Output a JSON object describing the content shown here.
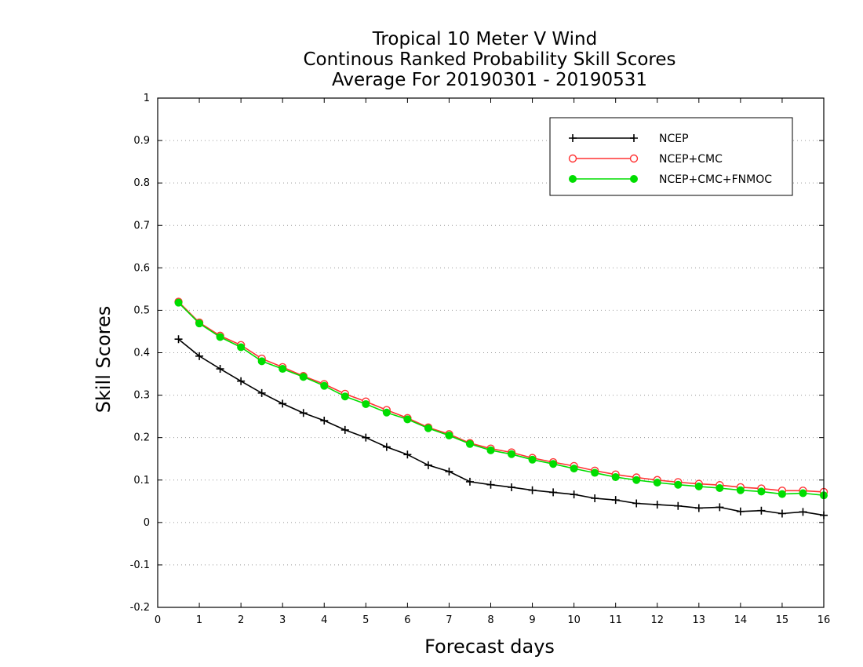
{
  "chart_data": {
    "type": "line",
    "title": [
      "Tropical 10 Meter V Wind",
      "Continous Ranked Probability Skill Scores",
      "Average For 20190301 - 20190531"
    ],
    "xlabel": "Forecast days",
    "ylabel": "Skill Scores",
    "xlim": [
      0,
      16
    ],
    "ylim": [
      -0.2,
      1
    ],
    "xticks": [
      0,
      1,
      2,
      3,
      4,
      5,
      6,
      7,
      8,
      9,
      10,
      11,
      12,
      13,
      14,
      15,
      16
    ],
    "yticks": [
      -0.2,
      -0.1,
      0,
      0.1,
      0.2,
      0.3,
      0.4,
      0.5,
      0.6,
      0.7,
      0.8,
      0.9,
      1
    ],
    "ytick_labels": [
      "-0.2",
      "-0.1",
      "0",
      "0.1",
      "0.2",
      "0.3",
      "0.4",
      "0.5",
      "0.6",
      "0.7",
      "0.8",
      "0.9",
      "1"
    ],
    "grid": "horizontal dotted",
    "legend_position": "top-right",
    "x": [
      0.5,
      1,
      1.5,
      2,
      2.5,
      3,
      3.5,
      4,
      4.5,
      5,
      5.5,
      6,
      6.5,
      7,
      7.5,
      8,
      8.5,
      9,
      9.5,
      10,
      10.5,
      11,
      11.5,
      12,
      12.5,
      13,
      13.5,
      14,
      14.5,
      15,
      15.5,
      16
    ],
    "series": [
      {
        "name": "NCEP",
        "color": "#000000",
        "marker": "plus",
        "values": [
          0.432,
          0.392,
          0.362,
          0.333,
          0.305,
          0.28,
          0.258,
          0.24,
          0.218,
          0.2,
          0.178,
          0.16,
          0.135,
          0.12,
          0.096,
          0.089,
          0.083,
          0.076,
          0.071,
          0.066,
          0.057,
          0.053,
          0.045,
          0.042,
          0.039,
          0.034,
          0.036,
          0.026,
          0.028,
          0.021,
          0.025,
          0.017
        ]
      },
      {
        "name": "NCEP+CMC",
        "color": "#ff3333",
        "marker": "open-circle",
        "values": [
          0.52,
          0.471,
          0.44,
          0.418,
          0.386,
          0.366,
          0.345,
          0.326,
          0.303,
          0.285,
          0.265,
          0.246,
          0.224,
          0.208,
          0.187,
          0.174,
          0.165,
          0.152,
          0.142,
          0.133,
          0.122,
          0.113,
          0.106,
          0.1,
          0.095,
          0.091,
          0.088,
          0.083,
          0.08,
          0.075,
          0.075,
          0.072
        ]
      },
      {
        "name": "NCEP+CMC+FNMOC",
        "color": "#00dd00",
        "marker": "filled-circle",
        "values": [
          0.518,
          0.469,
          0.437,
          0.413,
          0.38,
          0.362,
          0.343,
          0.322,
          0.297,
          0.279,
          0.259,
          0.243,
          0.222,
          0.205,
          0.185,
          0.17,
          0.161,
          0.148,
          0.138,
          0.127,
          0.117,
          0.107,
          0.1,
          0.094,
          0.089,
          0.085,
          0.081,
          0.076,
          0.073,
          0.067,
          0.069,
          0.064
        ]
      }
    ]
  }
}
